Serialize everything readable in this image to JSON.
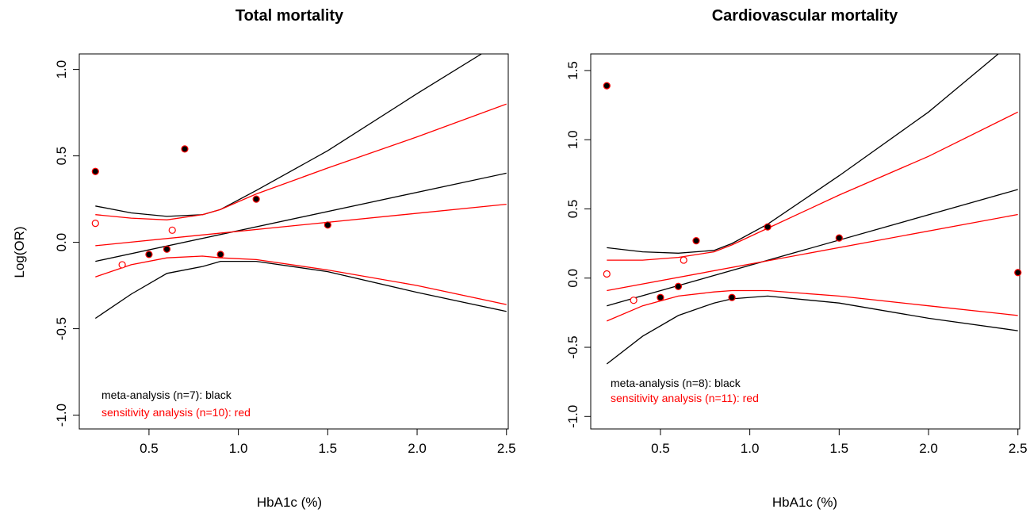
{
  "colors": {
    "meta": "#000000",
    "sensitivity": "#ff0000"
  },
  "chart_data": [
    {
      "type": "scatter",
      "title": "Total mortality",
      "xlabel": "HbA1c (%)",
      "ylabel": "Log(OR)",
      "xlim": [
        0.11,
        2.51
      ],
      "ylim": [
        -1.08,
        1.09
      ],
      "xticks": [
        0.5,
        1.0,
        1.5,
        2.0,
        2.5
      ],
      "xtick_labels": [
        "0.5",
        "1.0",
        "1.5",
        "2.0",
        "2.5"
      ],
      "yticks": [
        -1.0,
        -0.5,
        0.0,
        0.5,
        1.0
      ],
      "ytick_labels": [
        "-1.0",
        "-0.5",
        "0.0",
        "0.5",
        "1.0"
      ],
      "legend": [
        "meta-analysis (n=7): black",
        "sensitivity analysis (n=10): red"
      ],
      "meta_points": [
        {
          "x": 0.2,
          "y": 0.41
        },
        {
          "x": 0.5,
          "y": -0.07
        },
        {
          "x": 0.6,
          "y": -0.04
        },
        {
          "x": 0.7,
          "y": 0.54
        },
        {
          "x": 0.9,
          "y": -0.07
        },
        {
          "x": 1.1,
          "y": 0.25
        },
        {
          "x": 1.5,
          "y": 0.1
        }
      ],
      "sensitivity_points": [
        {
          "x": 0.2,
          "y": 0.11
        },
        {
          "x": 0.35,
          "y": -0.13
        },
        {
          "x": 0.63,
          "y": 0.07
        }
      ],
      "series": [
        {
          "name": "meta-analysis",
          "role": "fit",
          "color": "#000000",
          "x": [
            0.2,
            2.5
          ],
          "y": [
            -0.11,
            0.4
          ]
        },
        {
          "name": "meta-analysis",
          "role": "upper",
          "color": "#000000",
          "x": [
            0.2,
            0.4,
            0.6,
            0.8,
            0.9,
            1.1,
            1.5,
            2.0,
            2.36
          ],
          "y": [
            0.21,
            0.17,
            0.15,
            0.16,
            0.19,
            0.3,
            0.53,
            0.86,
            1.09
          ]
        },
        {
          "name": "meta-analysis",
          "role": "lower",
          "color": "#000000",
          "x": [
            0.2,
            0.4,
            0.6,
            0.8,
            0.9,
            1.1,
            1.5,
            2.0,
            2.5
          ],
          "y": [
            -0.44,
            -0.3,
            -0.18,
            -0.14,
            -0.11,
            -0.11,
            -0.17,
            -0.29,
            -0.4
          ]
        },
        {
          "name": "sensitivity analysis",
          "role": "fit",
          "color": "#ff0000",
          "x": [
            0.2,
            2.5
          ],
          "y": [
            -0.02,
            0.22
          ]
        },
        {
          "name": "sensitivity analysis",
          "role": "upper",
          "color": "#ff0000",
          "x": [
            0.2,
            0.4,
            0.6,
            0.8,
            0.9,
            1.1,
            1.5,
            2.0,
            2.5
          ],
          "y": [
            0.16,
            0.14,
            0.13,
            0.16,
            0.19,
            0.28,
            0.43,
            0.61,
            0.8
          ]
        },
        {
          "name": "sensitivity analysis",
          "role": "lower",
          "color": "#ff0000",
          "x": [
            0.2,
            0.4,
            0.6,
            0.8,
            0.9,
            1.1,
            1.5,
            2.0,
            2.5
          ],
          "y": [
            -0.2,
            -0.13,
            -0.09,
            -0.08,
            -0.09,
            -0.1,
            -0.16,
            -0.25,
            -0.36
          ]
        }
      ]
    },
    {
      "type": "scatter",
      "title": "Cardiovascular mortality",
      "xlabel": "HbA1c (%)",
      "ylabel": "",
      "xlim": [
        0.11,
        2.51
      ],
      "ylim": [
        -1.09,
        1.62
      ],
      "xticks": [
        0.5,
        1.0,
        1.5,
        2.0,
        2.5
      ],
      "xtick_labels": [
        "0.5",
        "1.0",
        "1.5",
        "2.0",
        "2.5"
      ],
      "yticks": [
        -1.0,
        -0.5,
        0.0,
        0.5,
        1.0,
        1.5
      ],
      "ytick_labels": [
        "-1.0",
        "-0.5",
        "0.0",
        "0.5",
        "1.0",
        "1.5"
      ],
      "legend": [
        "meta-analysis (n=8): black",
        "sensitivity analysis (n=11): red"
      ],
      "meta_points": [
        {
          "x": 0.2,
          "y": 1.39
        },
        {
          "x": 0.5,
          "y": -0.14
        },
        {
          "x": 0.6,
          "y": -0.06
        },
        {
          "x": 0.7,
          "y": 0.27
        },
        {
          "x": 0.9,
          "y": -0.14
        },
        {
          "x": 1.1,
          "y": 0.37
        },
        {
          "x": 1.5,
          "y": 0.29
        },
        {
          "x": 2.5,
          "y": 0.04
        }
      ],
      "sensitivity_points": [
        {
          "x": 0.2,
          "y": 0.03
        },
        {
          "x": 0.35,
          "y": -0.16
        },
        {
          "x": 0.63,
          "y": 0.13
        }
      ],
      "series": [
        {
          "name": "meta-analysis",
          "role": "fit",
          "color": "#000000",
          "x": [
            0.2,
            2.5
          ],
          "y": [
            -0.2,
            0.64
          ]
        },
        {
          "name": "meta-analysis",
          "role": "upper",
          "color": "#000000",
          "x": [
            0.2,
            0.4,
            0.6,
            0.8,
            0.9,
            1.1,
            1.5,
            2.0,
            2.39
          ],
          "y": [
            0.22,
            0.19,
            0.18,
            0.2,
            0.25,
            0.39,
            0.74,
            1.2,
            1.62
          ]
        },
        {
          "name": "meta-analysis",
          "role": "lower",
          "color": "#000000",
          "x": [
            0.2,
            0.4,
            0.6,
            0.8,
            0.9,
            1.1,
            1.5,
            2.0,
            2.5
          ],
          "y": [
            -0.62,
            -0.42,
            -0.27,
            -0.18,
            -0.15,
            -0.13,
            -0.18,
            -0.29,
            -0.38
          ]
        },
        {
          "name": "sensitivity analysis",
          "role": "fit",
          "color": "#ff0000",
          "x": [
            0.2,
            2.5
          ],
          "y": [
            -0.09,
            0.46
          ]
        },
        {
          "name": "sensitivity analysis",
          "role": "upper",
          "color": "#ff0000",
          "x": [
            0.2,
            0.4,
            0.6,
            0.8,
            0.9,
            1.1,
            1.5,
            2.0,
            2.5
          ],
          "y": [
            0.13,
            0.13,
            0.15,
            0.19,
            0.24,
            0.36,
            0.6,
            0.88,
            1.2
          ]
        },
        {
          "name": "sensitivity analysis",
          "role": "lower",
          "color": "#ff0000",
          "x": [
            0.2,
            0.4,
            0.6,
            0.8,
            0.9,
            1.1,
            1.5,
            2.0,
            2.5
          ],
          "y": [
            -0.31,
            -0.2,
            -0.13,
            -0.1,
            -0.09,
            -0.09,
            -0.13,
            -0.2,
            -0.27
          ]
        }
      ]
    }
  ]
}
